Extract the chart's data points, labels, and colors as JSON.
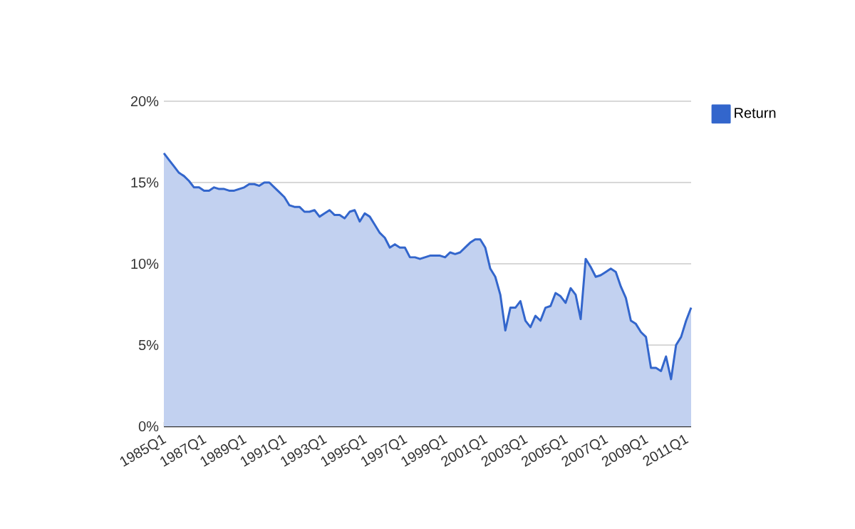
{
  "chart_data": {
    "type": "area",
    "categories": [
      "1985Q1",
      null,
      null,
      null,
      null,
      null,
      null,
      null,
      "1987Q1",
      null,
      null,
      null,
      null,
      null,
      null,
      null,
      "1989Q1",
      null,
      null,
      null,
      null,
      null,
      null,
      null,
      "1991Q1",
      null,
      null,
      null,
      null,
      null,
      null,
      null,
      "1993Q1",
      null,
      null,
      null,
      null,
      null,
      null,
      null,
      "1995Q1",
      null,
      null,
      null,
      null,
      null,
      null,
      null,
      "1997Q1",
      null,
      null,
      null,
      null,
      null,
      null,
      null,
      "1999Q1",
      null,
      null,
      null,
      null,
      null,
      null,
      null,
      "2001Q1",
      null,
      null,
      null,
      null,
      null,
      null,
      null,
      "2003Q1",
      null,
      null,
      null,
      null,
      null,
      null,
      null,
      "2005Q1",
      null,
      null,
      null,
      null,
      null,
      null,
      null,
      "2007Q1",
      null,
      null,
      null,
      null,
      null,
      null,
      null,
      "2009Q1",
      null,
      null,
      null,
      null,
      null,
      null,
      null,
      "2011Q1",
      null
    ],
    "series": [
      {
        "name": "Return",
        "color": "#3366cc",
        "values": [
          16.8,
          16.4,
          16.0,
          15.6,
          15.4,
          15.1,
          14.7,
          14.7,
          14.5,
          14.5,
          14.7,
          14.6,
          14.6,
          14.5,
          14.5,
          14.6,
          14.7,
          14.9,
          14.9,
          14.8,
          15.0,
          15.0,
          14.7,
          14.4,
          14.1,
          13.6,
          13.5,
          13.5,
          13.2,
          13.2,
          13.3,
          12.9,
          13.1,
          13.3,
          13.0,
          13.0,
          12.8,
          13.2,
          13.3,
          12.6,
          13.1,
          12.9,
          12.4,
          11.9,
          11.6,
          11.0,
          11.2,
          11.0,
          11.0,
          10.4,
          10.4,
          10.3,
          10.4,
          10.5,
          10.5,
          10.5,
          10.4,
          10.7,
          10.6,
          10.7,
          11.0,
          11.3,
          11.5,
          11.5,
          11.0,
          9.7,
          9.2,
          8.1,
          5.9,
          7.3,
          7.3,
          7.7,
          6.5,
          6.1,
          6.8,
          6.5,
          7.3,
          7.4,
          8.2,
          8.0,
          7.6,
          8.5,
          8.1,
          6.6,
          10.3,
          9.8,
          9.2,
          9.3,
          9.5,
          9.7,
          9.5,
          8.6,
          7.9,
          6.5,
          6.3,
          5.8,
          5.5,
          3.6,
          3.6,
          3.4,
          4.3,
          2.9,
          5.0,
          5.5,
          6.5,
          7.3
        ]
      }
    ],
    "ylim": [
      0,
      20
    ],
    "yticks": [
      {
        "value": 0,
        "label": "0%"
      },
      {
        "value": 5,
        "label": "5%"
      },
      {
        "value": 10,
        "label": "10%"
      },
      {
        "value": 15,
        "label": "15%"
      },
      {
        "value": 20,
        "label": "20%"
      }
    ],
    "grid": "y",
    "legend": "right"
  }
}
